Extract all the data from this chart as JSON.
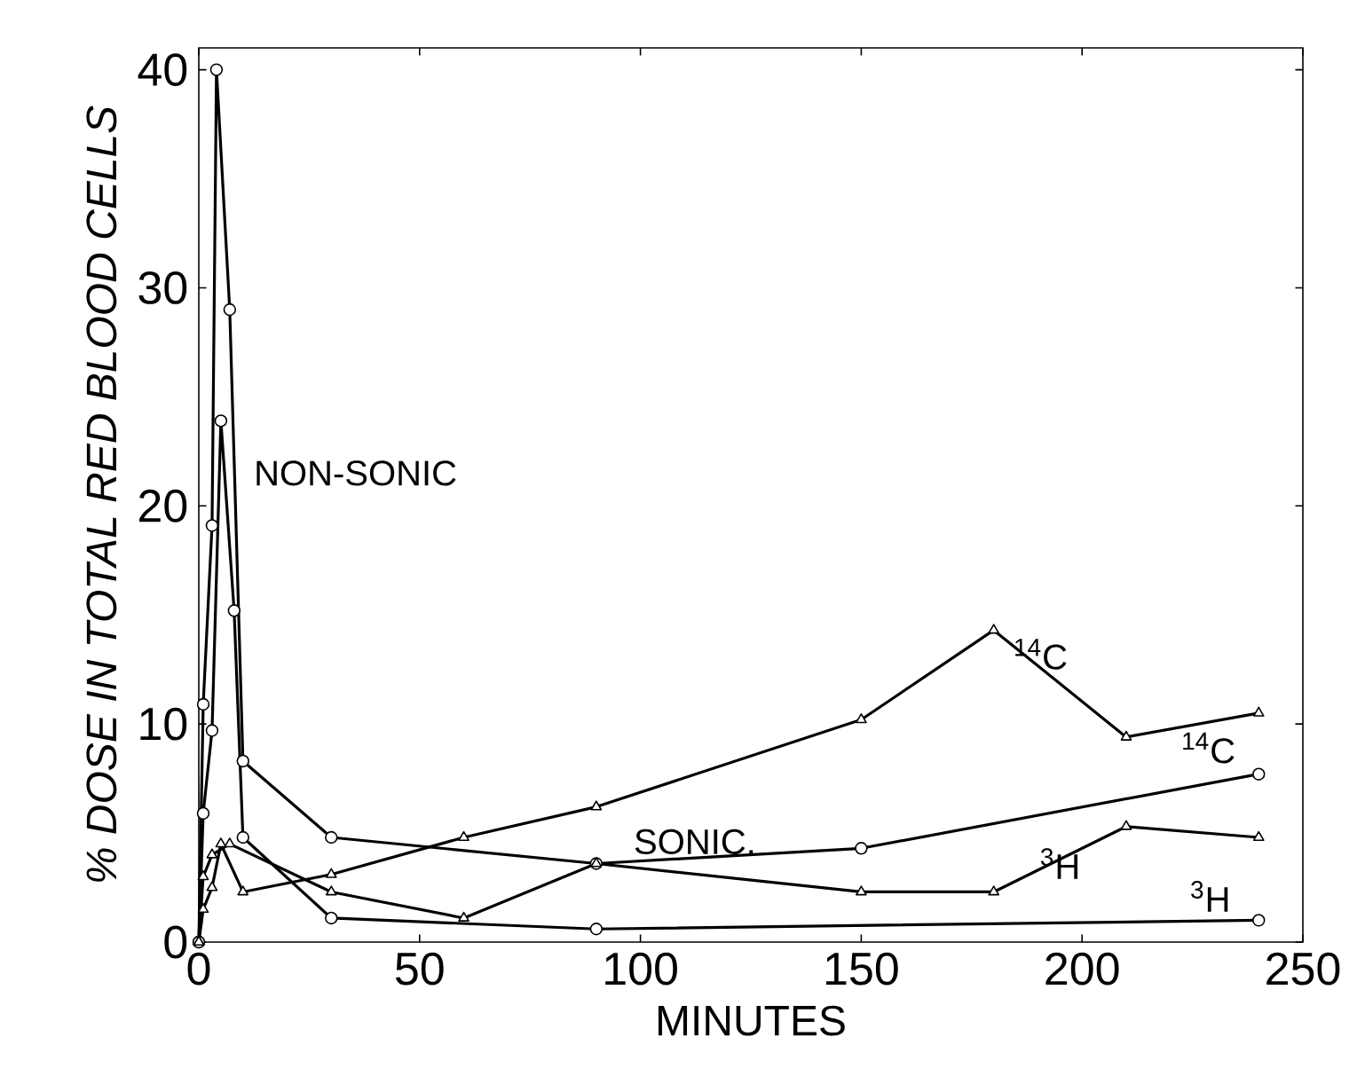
{
  "chart_data": {
    "type": "line",
    "xlabel": "MINUTES",
    "ylabel": "% DOSE IN TOTAL RED BLOOD CELLS",
    "xlim": [
      0,
      250
    ],
    "ylim": [
      0,
      41
    ],
    "xticks": [
      0,
      50,
      100,
      150,
      200,
      250
    ],
    "yticks": [
      0,
      10,
      20,
      30,
      40
    ],
    "grid": false,
    "series": [
      {
        "color": "#000000",
        "marker": "circle",
        "x": [
          0,
          1,
          3,
          4,
          7,
          10,
          30,
          90,
          150,
          240
        ],
        "values": [
          0,
          10.9,
          19.1,
          40,
          29,
          8.3,
          4.8,
          3.6,
          4.3,
          7.7
        ]
      },
      {
        "color": "#000000",
        "marker": "circle",
        "x": [
          0,
          1,
          3,
          5,
          8,
          10,
          30,
          90,
          240
        ],
        "values": [
          0,
          5.9,
          9.7,
          23.9,
          15.2,
          4.8,
          1.1,
          0.6,
          1.0
        ]
      },
      {
        "color": "#000000",
        "marker": "triangle",
        "x": [
          0,
          1,
          3,
          5,
          10,
          30,
          60,
          90,
          150,
          180,
          210,
          240
        ],
        "values": [
          0,
          1.5,
          2.5,
          4.5,
          2.3,
          3.1,
          4.8,
          6.2,
          10.2,
          14.3,
          9.4,
          10.5
        ]
      },
      {
        "color": "#000000",
        "marker": "triangle",
        "x": [
          0,
          1,
          3,
          7,
          30,
          60,
          90,
          150,
          180,
          210,
          240
        ],
        "values": [
          0,
          3,
          4,
          4.5,
          2.3,
          1.1,
          3.6,
          2.3,
          2.3,
          5.3,
          4.8
        ]
      }
    ],
    "annotations": [
      "NON-SONIC",
      "SONIC.",
      "$^{14}$C",
      "$^{14}$C",
      "$^{3}$H",
      "$^{3}$H"
    ]
  }
}
